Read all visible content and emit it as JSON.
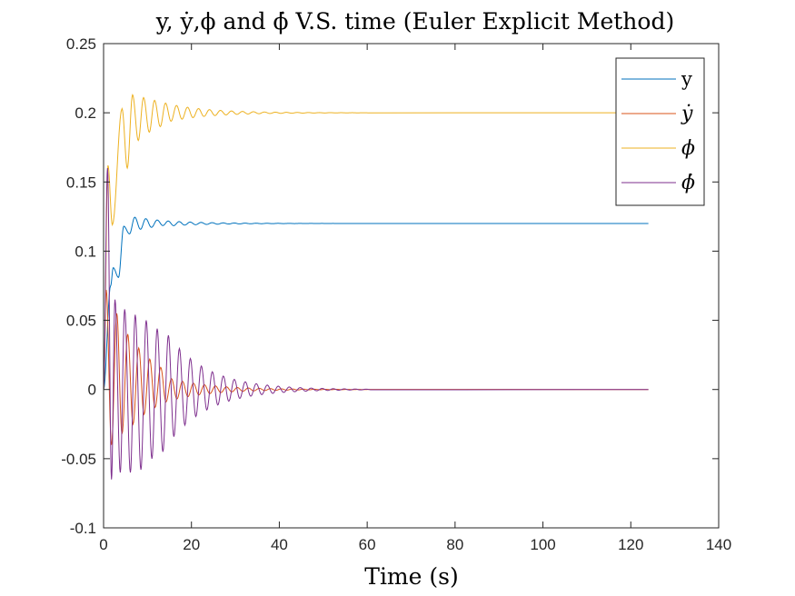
{
  "chart_data": {
    "type": "line",
    "title": "y, ẏ,ϕ and ϕ̇ V.S. time (Euler Explicit Method)",
    "xlabel": "Time (s)",
    "ylabel": "",
    "xlim": [
      0,
      140
    ],
    "ylim": [
      -0.1,
      0.25
    ],
    "x_ticks": [
      "0",
      "20",
      "40",
      "60",
      "80",
      "100",
      "120",
      "140"
    ],
    "y_ticks": [
      "-0.1",
      "-0.05",
      "0",
      "0.05",
      "0.1",
      "0.15",
      "0.2",
      "0.25"
    ],
    "grid": false,
    "legend_position": "top-right",
    "t_end": 124,
    "series": [
      {
        "name": "y",
        "color": "#0072BD",
        "final_value": 0.12,
        "peaks": [
          [
            2.2,
            0.088
          ],
          [
            4.6,
            0.118
          ],
          [
            7.1,
            0.1245
          ],
          [
            9.6,
            0.1235
          ],
          [
            12.2,
            0.1225
          ],
          [
            14.7,
            0.1218
          ]
        ],
        "troughs": [
          [
            0,
            0
          ],
          [
            1.6,
            0.075
          ],
          [
            3.4,
            0.081
          ],
          [
            5.9,
            0.1125
          ],
          [
            8.4,
            0.1158
          ],
          [
            10.9,
            0.1172
          ],
          [
            13.5,
            0.1185
          ]
        ]
      },
      {
        "name": "ẏ",
        "color": "#D95319",
        "final_value": 0,
        "peaks": [
          [
            0.6,
            0.072
          ],
          [
            3.0,
            0.055
          ],
          [
            5.5,
            0.04
          ],
          [
            8.0,
            0.03
          ],
          [
            10.5,
            0.022
          ],
          [
            13.0,
            0.016
          ]
        ],
        "troughs": [
          [
            1.8,
            -0.04
          ],
          [
            4.2,
            -0.032
          ],
          [
            6.7,
            -0.025
          ],
          [
            9.2,
            -0.018
          ],
          [
            11.7,
            -0.013
          ],
          [
            14.2,
            -0.009
          ]
        ]
      },
      {
        "name": "ϕ",
        "color": "#EDB120",
        "final_value": 0.2,
        "peaks": [
          [
            1.0,
            0.162
          ],
          [
            4.2,
            0.203
          ],
          [
            6.6,
            0.213
          ],
          [
            9.1,
            0.211
          ],
          [
            11.6,
            0.209
          ],
          [
            14.1,
            0.207
          ]
        ],
        "troughs": [
          [
            0,
            0
          ],
          [
            2.0,
            0.119
          ],
          [
            5.4,
            0.16
          ],
          [
            7.9,
            0.18
          ],
          [
            10.4,
            0.186
          ],
          [
            12.9,
            0.19
          ]
        ]
      },
      {
        "name": "ϕ̇",
        "color": "#7E2F8E",
        "final_value": 0,
        "peaks": [
          [
            0.9,
            0.16
          ],
          [
            2.6,
            0.065
          ],
          [
            4.8,
            0.058
          ],
          [
            7.2,
            0.054
          ],
          [
            9.7,
            0.05
          ],
          [
            12.2,
            0.044
          ]
        ],
        "troughs": [
          [
            1.8,
            -0.065
          ],
          [
            3.8,
            -0.06
          ],
          [
            6.1,
            -0.06
          ],
          [
            8.5,
            -0.058
          ],
          [
            11.0,
            -0.05
          ],
          [
            13.5,
            -0.045
          ]
        ]
      }
    ]
  }
}
